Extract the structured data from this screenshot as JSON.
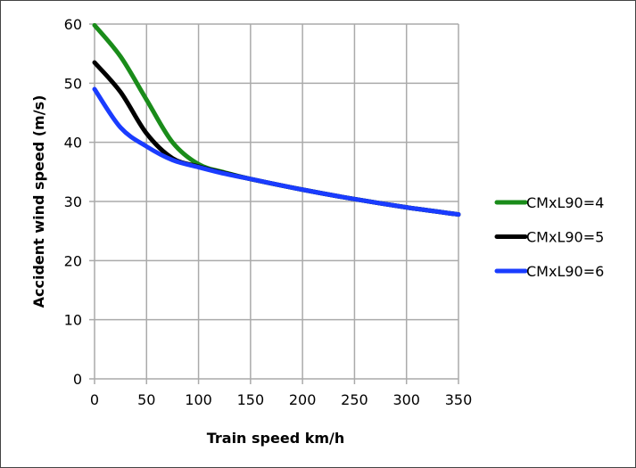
{
  "chart_data": {
    "type": "line",
    "title": "",
    "xlabel": "Train speed km/h",
    "ylabel": "Accident wind speed (m/s)",
    "xlim": [
      0,
      350
    ],
    "ylim": [
      0,
      60
    ],
    "xticks": [
      0,
      50,
      100,
      150,
      200,
      250,
      300,
      350
    ],
    "yticks": [
      0,
      10,
      20,
      30,
      40,
      50,
      60
    ],
    "grid": true,
    "legend_position": "right",
    "series": [
      {
        "name": "CMxL90=4",
        "color": "#1a8c1a",
        "x": [
          0,
          25,
          50,
          75,
          100,
          125,
          150,
          200,
          250,
          300,
          350
        ],
        "y": [
          59.8,
          54.5,
          47.2,
          40.0,
          36.3,
          34.9,
          33.8,
          32.0,
          30.4,
          29.0,
          27.8
        ]
      },
      {
        "name": "CMxL90=5",
        "color": "#000000",
        "x": [
          0,
          25,
          50,
          75,
          100,
          125,
          150,
          200,
          250,
          300,
          350
        ],
        "y": [
          53.5,
          48.5,
          41.5,
          37.3,
          35.9,
          34.8,
          33.8,
          32.0,
          30.4,
          29.0,
          27.8
        ]
      },
      {
        "name": "CMxL90=6",
        "color": "#1a3cff",
        "x": [
          0,
          25,
          50,
          75,
          100,
          125,
          150,
          200,
          250,
          300,
          350
        ],
        "y": [
          49.0,
          42.5,
          39.3,
          37.0,
          35.8,
          34.7,
          33.8,
          32.0,
          30.4,
          29.0,
          27.8
        ]
      }
    ]
  }
}
